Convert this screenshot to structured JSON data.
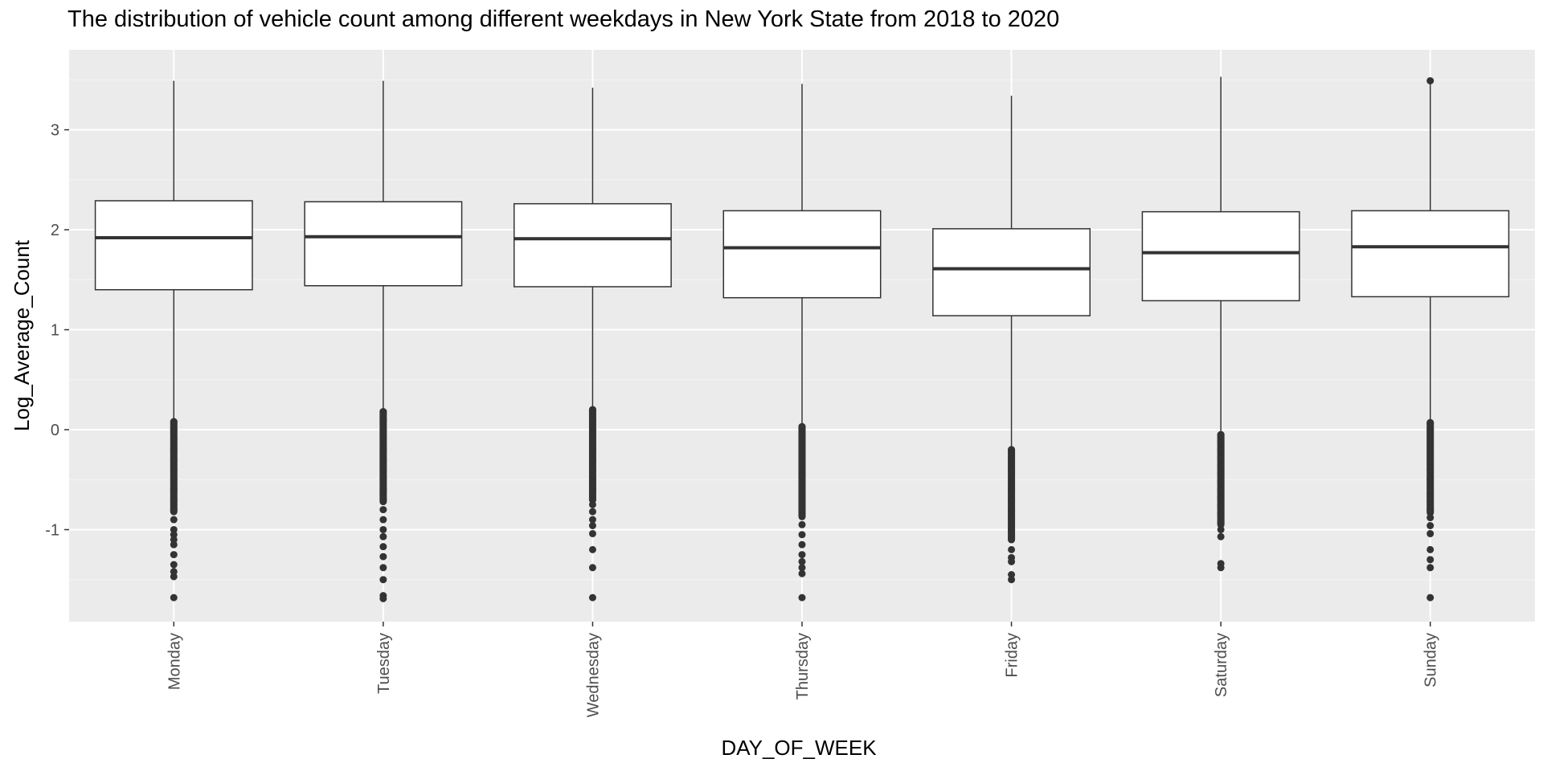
{
  "chart_data": {
    "type": "boxplot",
    "title": "The distribution of vehicle count among different weekdays in New York State from 2018 to 2020",
    "xlabel": "DAY_OF_WEEK",
    "ylabel": "Log_Average_Count",
    "ylim": [
      -1.92,
      3.8
    ],
    "y_ticks": [
      -1,
      0,
      1,
      2,
      3
    ],
    "grid": true,
    "categories": [
      "Monday",
      "Tuesday",
      "Wednesday",
      "Thursday",
      "Friday",
      "Saturday",
      "Sunday"
    ],
    "boxes": [
      {
        "category": "Monday",
        "whisker_high": 3.49,
        "q3": 2.29,
        "median": 1.92,
        "q1": 1.4,
        "whisker_low": 0.1,
        "outliers": [
          0.08,
          0.0,
          -0.1,
          -0.2,
          -0.3,
          -0.4,
          -0.5,
          -0.6,
          -0.7,
          -0.8,
          -0.9,
          -1.0,
          -1.05,
          -1.1,
          -1.15,
          -1.25,
          -1.35,
          -1.42,
          -1.47,
          -1.68
        ]
      },
      {
        "category": "Tuesday",
        "whisker_high": 3.49,
        "q3": 2.28,
        "median": 1.93,
        "q1": 1.44,
        "whisker_low": 0.19,
        "outliers": [
          0.18,
          0.1,
          0.0,
          -0.1,
          -0.2,
          -0.3,
          -0.4,
          -0.5,
          -0.6,
          -0.7,
          -0.8,
          -0.9,
          -1.0,
          -1.07,
          -1.17,
          -1.27,
          -1.38,
          -1.5,
          -1.66,
          -1.69
        ]
      },
      {
        "category": "Wednesday",
        "whisker_high": 3.42,
        "q3": 2.26,
        "median": 1.91,
        "q1": 1.43,
        "whisker_low": 0.21,
        "outliers": [
          0.2,
          0.1,
          0.0,
          -0.1,
          -0.2,
          -0.3,
          -0.4,
          -0.5,
          -0.6,
          -0.7,
          -0.75,
          -0.82,
          -0.9,
          -0.96,
          -1.04,
          -1.2,
          -1.38,
          -1.68
        ]
      },
      {
        "category": "Thursday",
        "whisker_high": 3.46,
        "q3": 2.19,
        "median": 1.82,
        "q1": 1.32,
        "whisker_low": 0.04,
        "outliers": [
          0.03,
          -0.05,
          -0.15,
          -0.25,
          -0.35,
          -0.45,
          -0.55,
          -0.65,
          -0.75,
          -0.85,
          -0.95,
          -1.05,
          -1.15,
          -1.25,
          -1.32,
          -1.38,
          -1.44,
          -1.68
        ]
      },
      {
        "category": "Friday",
        "whisker_high": 3.34,
        "q3": 2.01,
        "median": 1.61,
        "q1": 1.14,
        "whisker_low": -0.18,
        "outliers": [
          -0.2,
          -0.3,
          -0.4,
          -0.5,
          -0.6,
          -0.7,
          -0.8,
          -0.9,
          -1.0,
          -1.1,
          -1.2,
          -1.28,
          -1.32,
          -1.45,
          -1.5
        ]
      },
      {
        "category": "Saturday",
        "whisker_high": 3.53,
        "q3": 2.18,
        "median": 1.77,
        "q1": 1.29,
        "whisker_low": -0.04,
        "outliers": [
          -0.05,
          -0.12,
          -0.2,
          -0.28,
          -0.36,
          -0.44,
          -0.52,
          -0.6,
          -0.68,
          -0.76,
          -0.84,
          -0.93,
          -1.0,
          -1.07,
          -1.34,
          -1.38
        ]
      },
      {
        "category": "Sunday",
        "whisker_high": 3.47,
        "q3": 2.19,
        "median": 1.83,
        "q1": 1.33,
        "whisker_low": 0.08,
        "outliers": [
          3.49,
          0.07,
          0.0,
          -0.08,
          -0.16,
          -0.24,
          -0.32,
          -0.4,
          -0.5,
          -0.64,
          -0.72,
          -0.8,
          -0.88,
          -0.96,
          -1.04,
          -1.2,
          -1.3,
          -1.38,
          -1.68
        ]
      }
    ]
  }
}
